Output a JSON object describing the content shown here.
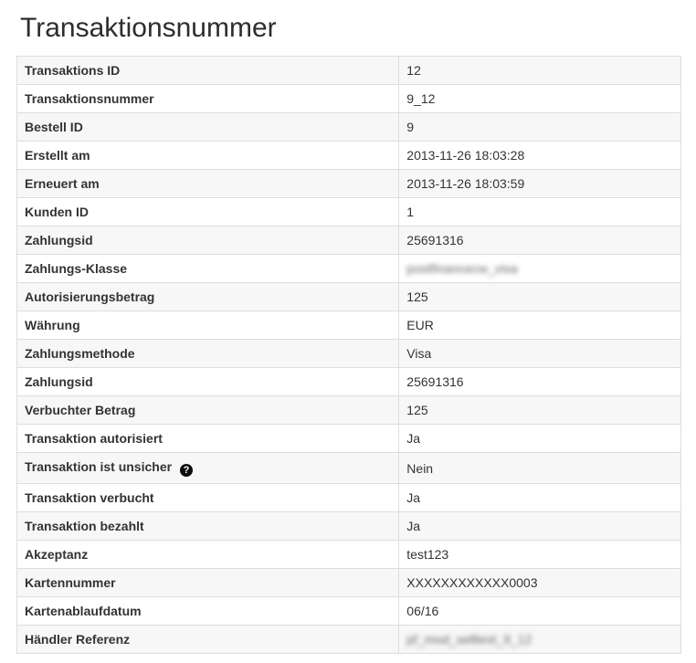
{
  "page": {
    "title": "Transaktionsnummer"
  },
  "icons": {
    "help_glyph": "?"
  },
  "colors": {
    "stripe_row": "#f7f7f7",
    "border": "#dddddd",
    "text": "#333333",
    "help_icon_bg": "#0d0d0d"
  },
  "table": {
    "rows": [
      {
        "label": "Transaktions ID",
        "value": "12"
      },
      {
        "label": "Transaktionsnummer",
        "value": "9_12"
      },
      {
        "label": "Bestell ID",
        "value": "9"
      },
      {
        "label": "Erstellt am",
        "value": "2013-11-26 18:03:28"
      },
      {
        "label": "Erneuert am",
        "value": "2013-11-26 18:03:59"
      },
      {
        "label": "Kunden ID",
        "value": "1"
      },
      {
        "label": "Zahlungsid",
        "value": "25691316"
      },
      {
        "label": "Zahlungs-Klasse",
        "value": "postfinancecw_visa",
        "blurred": true
      },
      {
        "label": "Autorisierungsbetrag",
        "value": "125"
      },
      {
        "label": "Währung",
        "value": "EUR"
      },
      {
        "label": "Zahlungsmethode",
        "value": "Visa"
      },
      {
        "label": "Zahlungsid",
        "value": "25691316"
      },
      {
        "label": "Verbuchter Betrag",
        "value": "125"
      },
      {
        "label": "Transaktion autorisiert",
        "value": "Ja"
      },
      {
        "label": "Transaktion ist unsicher",
        "value": "Nein",
        "help_icon": true
      },
      {
        "label": "Transaktion verbucht",
        "value": "Ja"
      },
      {
        "label": "Transaktion bezahlt",
        "value": "Ja"
      },
      {
        "label": "Akzeptanz",
        "value": "test123"
      },
      {
        "label": "Kartennummer",
        "value": "XXXXXXXXXXXX0003"
      },
      {
        "label": "Kartenablaufdatum",
        "value": "06/16"
      },
      {
        "label": "Händler Referenz",
        "value": "pf_mod_selltest_9_12",
        "blurred": true
      }
    ]
  }
}
